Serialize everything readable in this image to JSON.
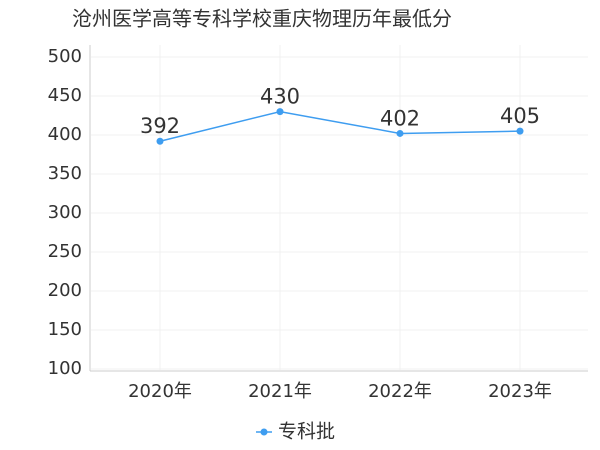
{
  "chart_data": {
    "type": "line",
    "title": "沧州医学高等专科学校重庆物理历年最低分",
    "categories": [
      "2020年",
      "2021年",
      "2022年",
      "2023年"
    ],
    "series": [
      {
        "name": "专科批",
        "color": "#3e9df0",
        "values": [
          392,
          430,
          402,
          405
        ]
      }
    ],
    "ylim": [
      100,
      500
    ],
    "yticks": [
      100,
      150,
      200,
      250,
      300,
      350,
      400,
      450,
      500
    ],
    "grid": true,
    "legend": "bottom"
  }
}
